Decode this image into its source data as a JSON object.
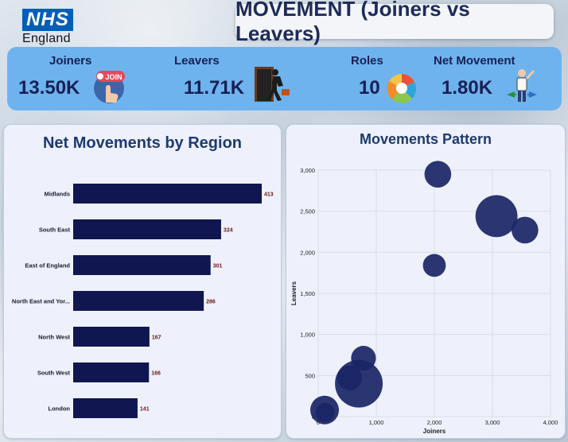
{
  "brand": {
    "nhs": "NHS",
    "region": "England"
  },
  "header": {
    "title": "MOVEMENT (Joiners vs Leavers)"
  },
  "kpis": [
    {
      "label": "Joiners",
      "value": "13.50K",
      "icon": "join-button-icon"
    },
    {
      "label": "Leavers",
      "value": "11.71K",
      "icon": "exit-door-icon"
    },
    {
      "label": "Roles",
      "value": "10",
      "icon": "role-wheel-icon"
    },
    {
      "label": "Net Movement",
      "value": "1.80K",
      "icon": "person-arrows-icon"
    }
  ],
  "chart_data": [
    {
      "type": "bar",
      "orientation": "horizontal",
      "title": "Net Movements by Region",
      "categories": [
        "Midlands",
        "South East",
        "East of England",
        "North East and Yor...",
        "North West",
        "South West",
        "London"
      ],
      "values": [
        413,
        324,
        301,
        286,
        167,
        166,
        141
      ],
      "xlabel": "",
      "ylabel": "",
      "color": "#0f1650"
    },
    {
      "type": "scatter",
      "title": "Movements Pattern",
      "xlabel": "Joiners",
      "ylabel": "Leavers",
      "xlim": [
        0,
        4000
      ],
      "ylim": [
        0,
        3000
      ],
      "xticks": [
        "0",
        "1,000",
        "2,000",
        "3,000",
        "4,000"
      ],
      "yticks": [
        "0",
        "500",
        "1,000",
        "1,500",
        "2,000",
        "2,500",
        "3,000"
      ],
      "points": [
        {
          "x": 2060,
          "y": 2950,
          "size": 0.45
        },
        {
          "x": 3070,
          "y": 2440,
          "size": 0.85
        },
        {
          "x": 3560,
          "y": 2270,
          "size": 0.45
        },
        {
          "x": 2000,
          "y": 1840,
          "size": 0.35
        },
        {
          "x": 780,
          "y": 710,
          "size": 0.4
        },
        {
          "x": 540,
          "y": 470,
          "size": 0.4
        },
        {
          "x": 700,
          "y": 400,
          "size": 1.0
        },
        {
          "x": 110,
          "y": 80,
          "size": 0.5
        },
        {
          "x": 120,
          "y": 50,
          "size": 0.25
        }
      ],
      "grid": true,
      "color": "#1a2565"
    }
  ]
}
